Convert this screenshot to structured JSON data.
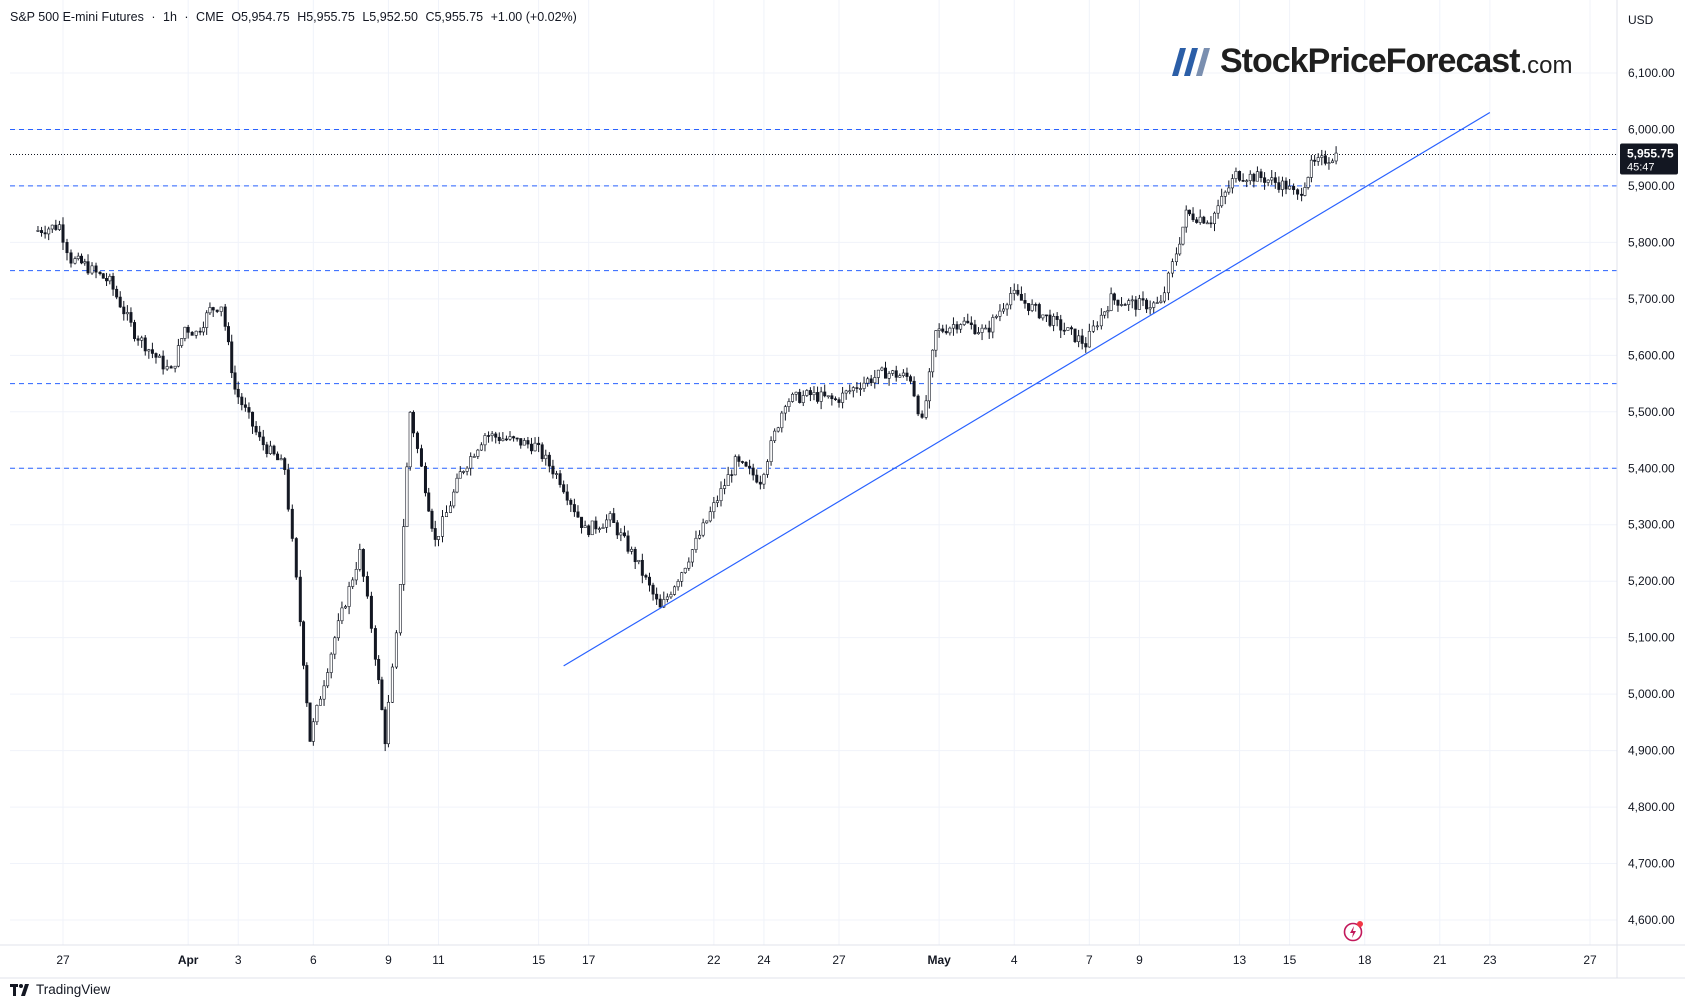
{
  "header": {
    "symbol": "S&P 500 E-mini Futures",
    "interval": "1h",
    "exchange": "CME",
    "open": "O5,954.75",
    "high": "H5,955.75",
    "low": "L5,952.50",
    "close": "C5,955.75",
    "change": "+1.00 (+0.02%)"
  },
  "branding": {
    "logo_main": "StockPriceForecast",
    "logo_tld": ".com",
    "footer": "TradingView"
  },
  "chart_data": {
    "type": "candlestick",
    "title": "S&P 500 E-mini Futures · 1h · CME",
    "currency": "USD",
    "last_price": {
      "value": "5,955.75",
      "countdown": "45:47"
    },
    "y_axis": {
      "ylim": [
        4550,
        6150
      ],
      "ticks": [
        4600,
        4700,
        4800,
        4900,
        5000,
        5100,
        5200,
        5300,
        5400,
        5500,
        5600,
        5700,
        5800,
        5900,
        6000,
        6100
      ],
      "tick_labels": [
        "4,600.00",
        "4,700.00",
        "4,800.00",
        "4,900.00",
        "5,000.00",
        "5,100.00",
        "5,200.00",
        "5,300.00",
        "5,400.00",
        "5,500.00",
        "5,600.00",
        "5,700.00",
        "5,800.00",
        "5,900.00",
        "6,000.00",
        "6,100.00"
      ]
    },
    "x_axis": {
      "labels": [
        "27",
        "Apr",
        "3",
        "6",
        "9",
        "11",
        "15",
        "17",
        "22",
        "24",
        "27",
        "May",
        "4",
        "7",
        "9",
        "13",
        "15",
        "18",
        "21",
        "23",
        "27"
      ],
      "label_dates": [
        "Mar 27",
        "Apr 1",
        "Apr 3",
        "Apr 6",
        "Apr 9",
        "Apr 11",
        "Apr 15",
        "Apr 17",
        "Apr 22",
        "Apr 24",
        "Apr 27",
        "May 1",
        "May 4",
        "May 7",
        "May 9",
        "May 13",
        "May 15",
        "May 18",
        "May 21",
        "May 23",
        "May 27"
      ],
      "bold_labels": [
        "Apr",
        "May"
      ]
    },
    "horizontal_levels": [
      6000,
      5900,
      5750,
      5550,
      5400
    ],
    "trendline": {
      "from": {
        "date": "Apr 16",
        "value": 5050
      },
      "to": {
        "date": "May 23",
        "value": 6030
      }
    },
    "price_path": [
      {
        "date": "Mar 26",
        "value": 5820
      },
      {
        "date": "Mar 27",
        "value": 5830
      },
      {
        "date": "Mar 27",
        "value": 5770
      },
      {
        "date": "Mar 28",
        "value": 5760
      },
      {
        "date": "Mar 28",
        "value": 5745
      },
      {
        "date": "Mar 29",
        "value": 5730
      },
      {
        "date": "Mar 30",
        "value": 5640
      },
      {
        "date": "Mar 31",
        "value": 5590
      },
      {
        "date": "Mar 31",
        "value": 5570
      },
      {
        "date": "Apr 1",
        "value": 5650
      },
      {
        "date": "Apr 1",
        "value": 5640
      },
      {
        "date": "Apr 2",
        "value": 5680
      },
      {
        "date": "Apr 2",
        "value": 5690
      },
      {
        "date": "Apr 3",
        "value": 5540
      },
      {
        "date": "Apr 4",
        "value": 5450
      },
      {
        "date": "Apr 5",
        "value": 5400
      },
      {
        "date": "Apr 5",
        "value": 5200
      },
      {
        "date": "Apr 6",
        "value": 4920
      },
      {
        "date": "Apr 7",
        "value": 5100
      },
      {
        "date": "Apr 8",
        "value": 5250
      },
      {
        "date": "Apr 8",
        "value": 5120
      },
      {
        "date": "Apr 9",
        "value": 4920
      },
      {
        "date": "Apr 9",
        "value": 5100
      },
      {
        "date": "Apr 10",
        "value": 5500
      },
      {
        "date": "Apr 10",
        "value": 5400
      },
      {
        "date": "Apr 11",
        "value": 5270
      },
      {
        "date": "Apr 11",
        "value": 5320
      },
      {
        "date": "Apr 12",
        "value": 5390
      },
      {
        "date": "Apr 13",
        "value": 5460
      },
      {
        "date": "Apr 14",
        "value": 5450
      },
      {
        "date": "Apr 15",
        "value": 5440
      },
      {
        "date": "Apr 16",
        "value": 5380
      },
      {
        "date": "Apr 17",
        "value": 5290
      },
      {
        "date": "Apr 18",
        "value": 5310
      },
      {
        "date": "Apr 19",
        "value": 5240
      },
      {
        "date": "Apr 20",
        "value": 5150
      },
      {
        "date": "Apr 21",
        "value": 5230
      },
      {
        "date": "Apr 22",
        "value": 5320
      },
      {
        "date": "Apr 23",
        "value": 5410
      },
      {
        "date": "Apr 24",
        "value": 5380
      },
      {
        "date": "Apr 25",
        "value": 5520
      },
      {
        "date": "Apr 26",
        "value": 5530
      },
      {
        "date": "Apr 27",
        "value": 5520
      },
      {
        "date": "Apr 28",
        "value": 5550
      },
      {
        "date": "Apr 29",
        "value": 5570
      },
      {
        "date": "Apr 30",
        "value": 5560
      },
      {
        "date": "Apr 30",
        "value": 5480
      },
      {
        "date": "May 1",
        "value": 5640
      },
      {
        "date": "May 2",
        "value": 5660
      },
      {
        "date": "May 3",
        "value": 5640
      },
      {
        "date": "May 4",
        "value": 5710
      },
      {
        "date": "May 5",
        "value": 5680
      },
      {
        "date": "May 6",
        "value": 5650
      },
      {
        "date": "May 7",
        "value": 5620
      },
      {
        "date": "May 7",
        "value": 5660
      },
      {
        "date": "May 8",
        "value": 5700
      },
      {
        "date": "May 9",
        "value": 5690
      },
      {
        "date": "May 10",
        "value": 5690
      },
      {
        "date": "May 10",
        "value": 5760
      },
      {
        "date": "May 11",
        "value": 5850
      },
      {
        "date": "May 12",
        "value": 5840
      },
      {
        "date": "May 13",
        "value": 5920
      },
      {
        "date": "May 14",
        "value": 5915
      },
      {
        "date": "May 15",
        "value": 5900
      },
      {
        "date": "May 15",
        "value": 5880
      },
      {
        "date": "May 16",
        "value": 5935
      },
      {
        "date": "May 17",
        "value": 5955.75
      }
    ]
  }
}
